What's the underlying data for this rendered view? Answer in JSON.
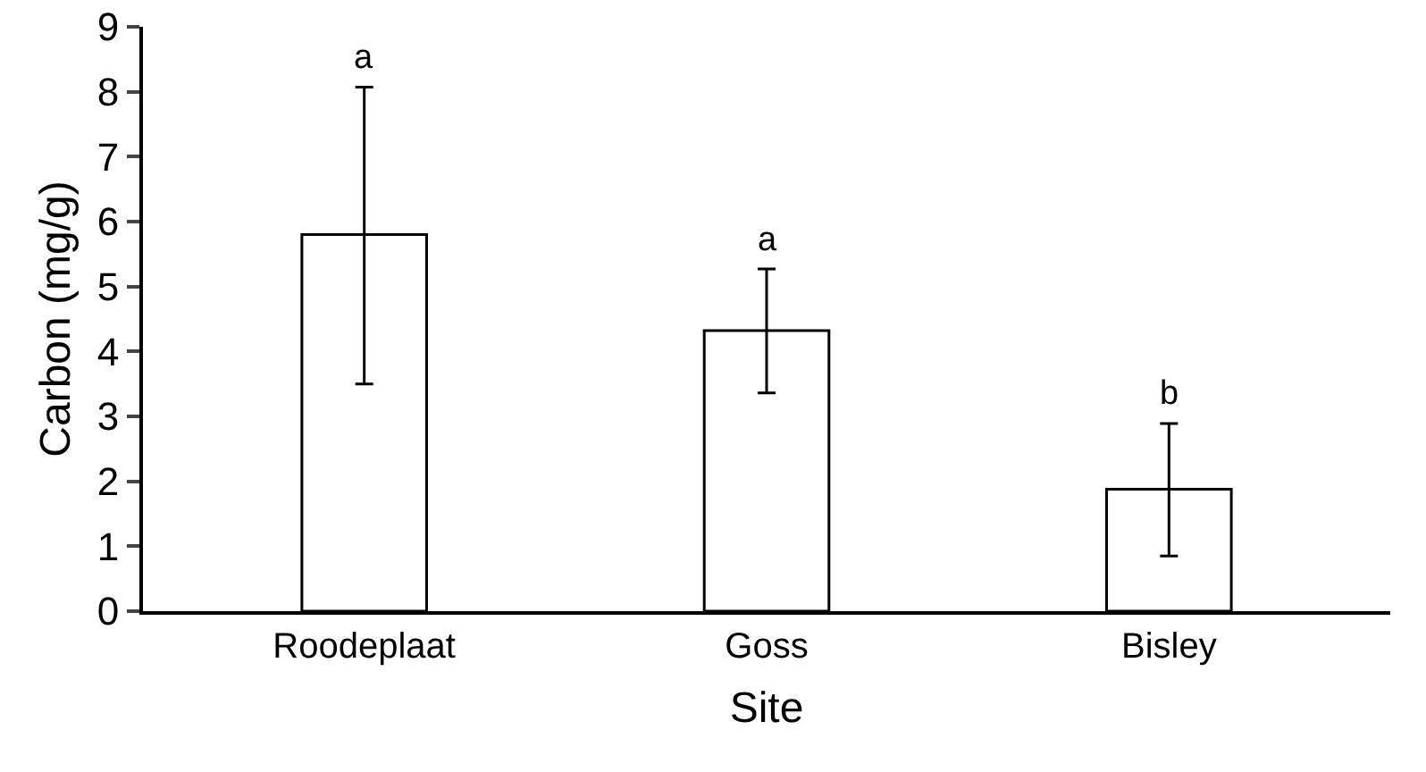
{
  "chart_data": {
    "type": "bar",
    "xlabel": "Site",
    "ylabel": "Carbon (mg/g)",
    "categories": [
      "Roodeplaat",
      "Goss",
      "Bisley"
    ],
    "values": [
      5.8,
      4.32,
      1.88
    ],
    "color": "#ffffff",
    "errors": [
      [
        3.5,
        8.07
      ],
      [
        3.36,
        5.27
      ],
      [
        0.85,
        2.89
      ]
    ],
    "ylim": [
      0,
      9
    ],
    "yticks": [
      0,
      1,
      2,
      3,
      4,
      5,
      6,
      7,
      8,
      9
    ],
    "grid": false,
    "annotations": [
      {
        "text": "a",
        "x": "Roodeplaat",
        "y": 8.07
      },
      {
        "text": "a",
        "x": "Goss",
        "y": 5.27
      },
      {
        "text": "b",
        "x": "Bisley",
        "y": 2.89
      }
    ]
  }
}
